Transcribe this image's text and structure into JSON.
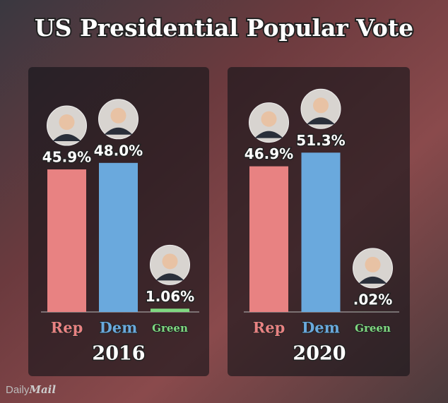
{
  "title": "US Presidential Popular Vote",
  "brand": [
    "Daily",
    "Mail"
  ],
  "chart_data": [
    {
      "type": "bar",
      "title": "2016",
      "categories": [
        "Rep",
        "Dem",
        "Green"
      ],
      "values": [
        45.9,
        48.0,
        1.06
      ],
      "value_labels": [
        "45.9%",
        "48.0%",
        "1.06%"
      ],
      "colors": [
        "#e88282",
        "#6aa9dd",
        "#80d880"
      ]
    },
    {
      "type": "bar",
      "title": "2020",
      "categories": [
        "Rep",
        "Dem",
        "Green"
      ],
      "values": [
        46.9,
        51.3,
        0.02
      ],
      "value_labels": [
        "46.9%",
        "51.3%",
        ".02%"
      ],
      "colors": [
        "#e88282",
        "#6aa9dd",
        "#80d880"
      ]
    }
  ]
}
